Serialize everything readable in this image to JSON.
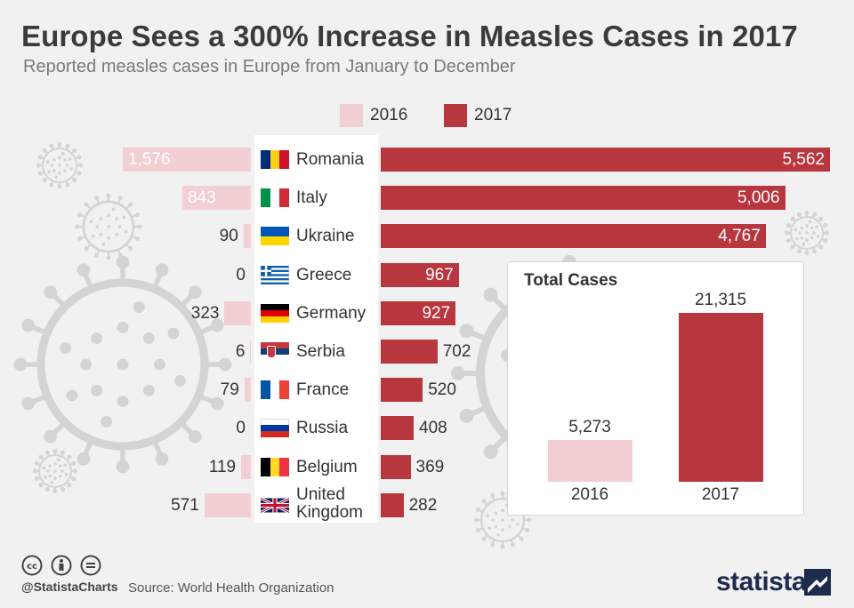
{
  "chart_data": {
    "type": "bar",
    "title": "Europe Sees a 300% Increase in Measles Cases in 2017",
    "subtitle": "Reported measles cases in Europe from January to December",
    "legend": [
      "2016",
      "2017"
    ],
    "categories": [
      {
        "name": "Romania",
        "flag": "romania-flag-icon"
      },
      {
        "name": "Italy",
        "flag": "italy-flag-icon"
      },
      {
        "name": "Ukraine",
        "flag": "ukraine-flag-icon"
      },
      {
        "name": "Greece",
        "flag": "greece-flag-icon"
      },
      {
        "name": "Germany",
        "flag": "germany-flag-icon"
      },
      {
        "name": "Serbia",
        "flag": "serbia-flag-icon"
      },
      {
        "name": "France",
        "flag": "france-flag-icon"
      },
      {
        "name": "Russia",
        "flag": "russia-flag-icon"
      },
      {
        "name": "Belgium",
        "flag": "belgium-flag-icon"
      },
      {
        "name": "United Kingdom",
        "flag": "uk-flag-icon"
      }
    ],
    "series": [
      {
        "name": "2016",
        "color": "#f2cfd3",
        "values": [
          1576,
          843,
          90,
          0,
          323,
          6,
          79,
          0,
          119,
          571
        ],
        "labels": [
          "1,576",
          "843",
          "90",
          "0",
          "323",
          "6",
          "79",
          "0",
          "119",
          "571"
        ]
      },
      {
        "name": "2017",
        "color": "#b8363d",
        "values": [
          5562,
          5006,
          4767,
          967,
          927,
          702,
          520,
          408,
          369,
          282
        ],
        "labels": [
          "5,562",
          "5,006",
          "4,767",
          "967",
          "927",
          "702",
          "520",
          "408",
          "369",
          "282"
        ]
      }
    ],
    "totals": {
      "title": "Total Cases",
      "categories": [
        "2016",
        "2017"
      ],
      "values": [
        5273,
        21315
      ],
      "labels": [
        "5,273",
        "21,315"
      ],
      "colors": [
        "#f2cfd3",
        "#b8363d"
      ]
    }
  },
  "footer": {
    "handle": "@StatistaCharts",
    "source": "Source: World Health Organization",
    "brand": "statista",
    "license_icons": [
      "cc-icon",
      "attribution-icon",
      "no-derivatives-icon"
    ]
  }
}
